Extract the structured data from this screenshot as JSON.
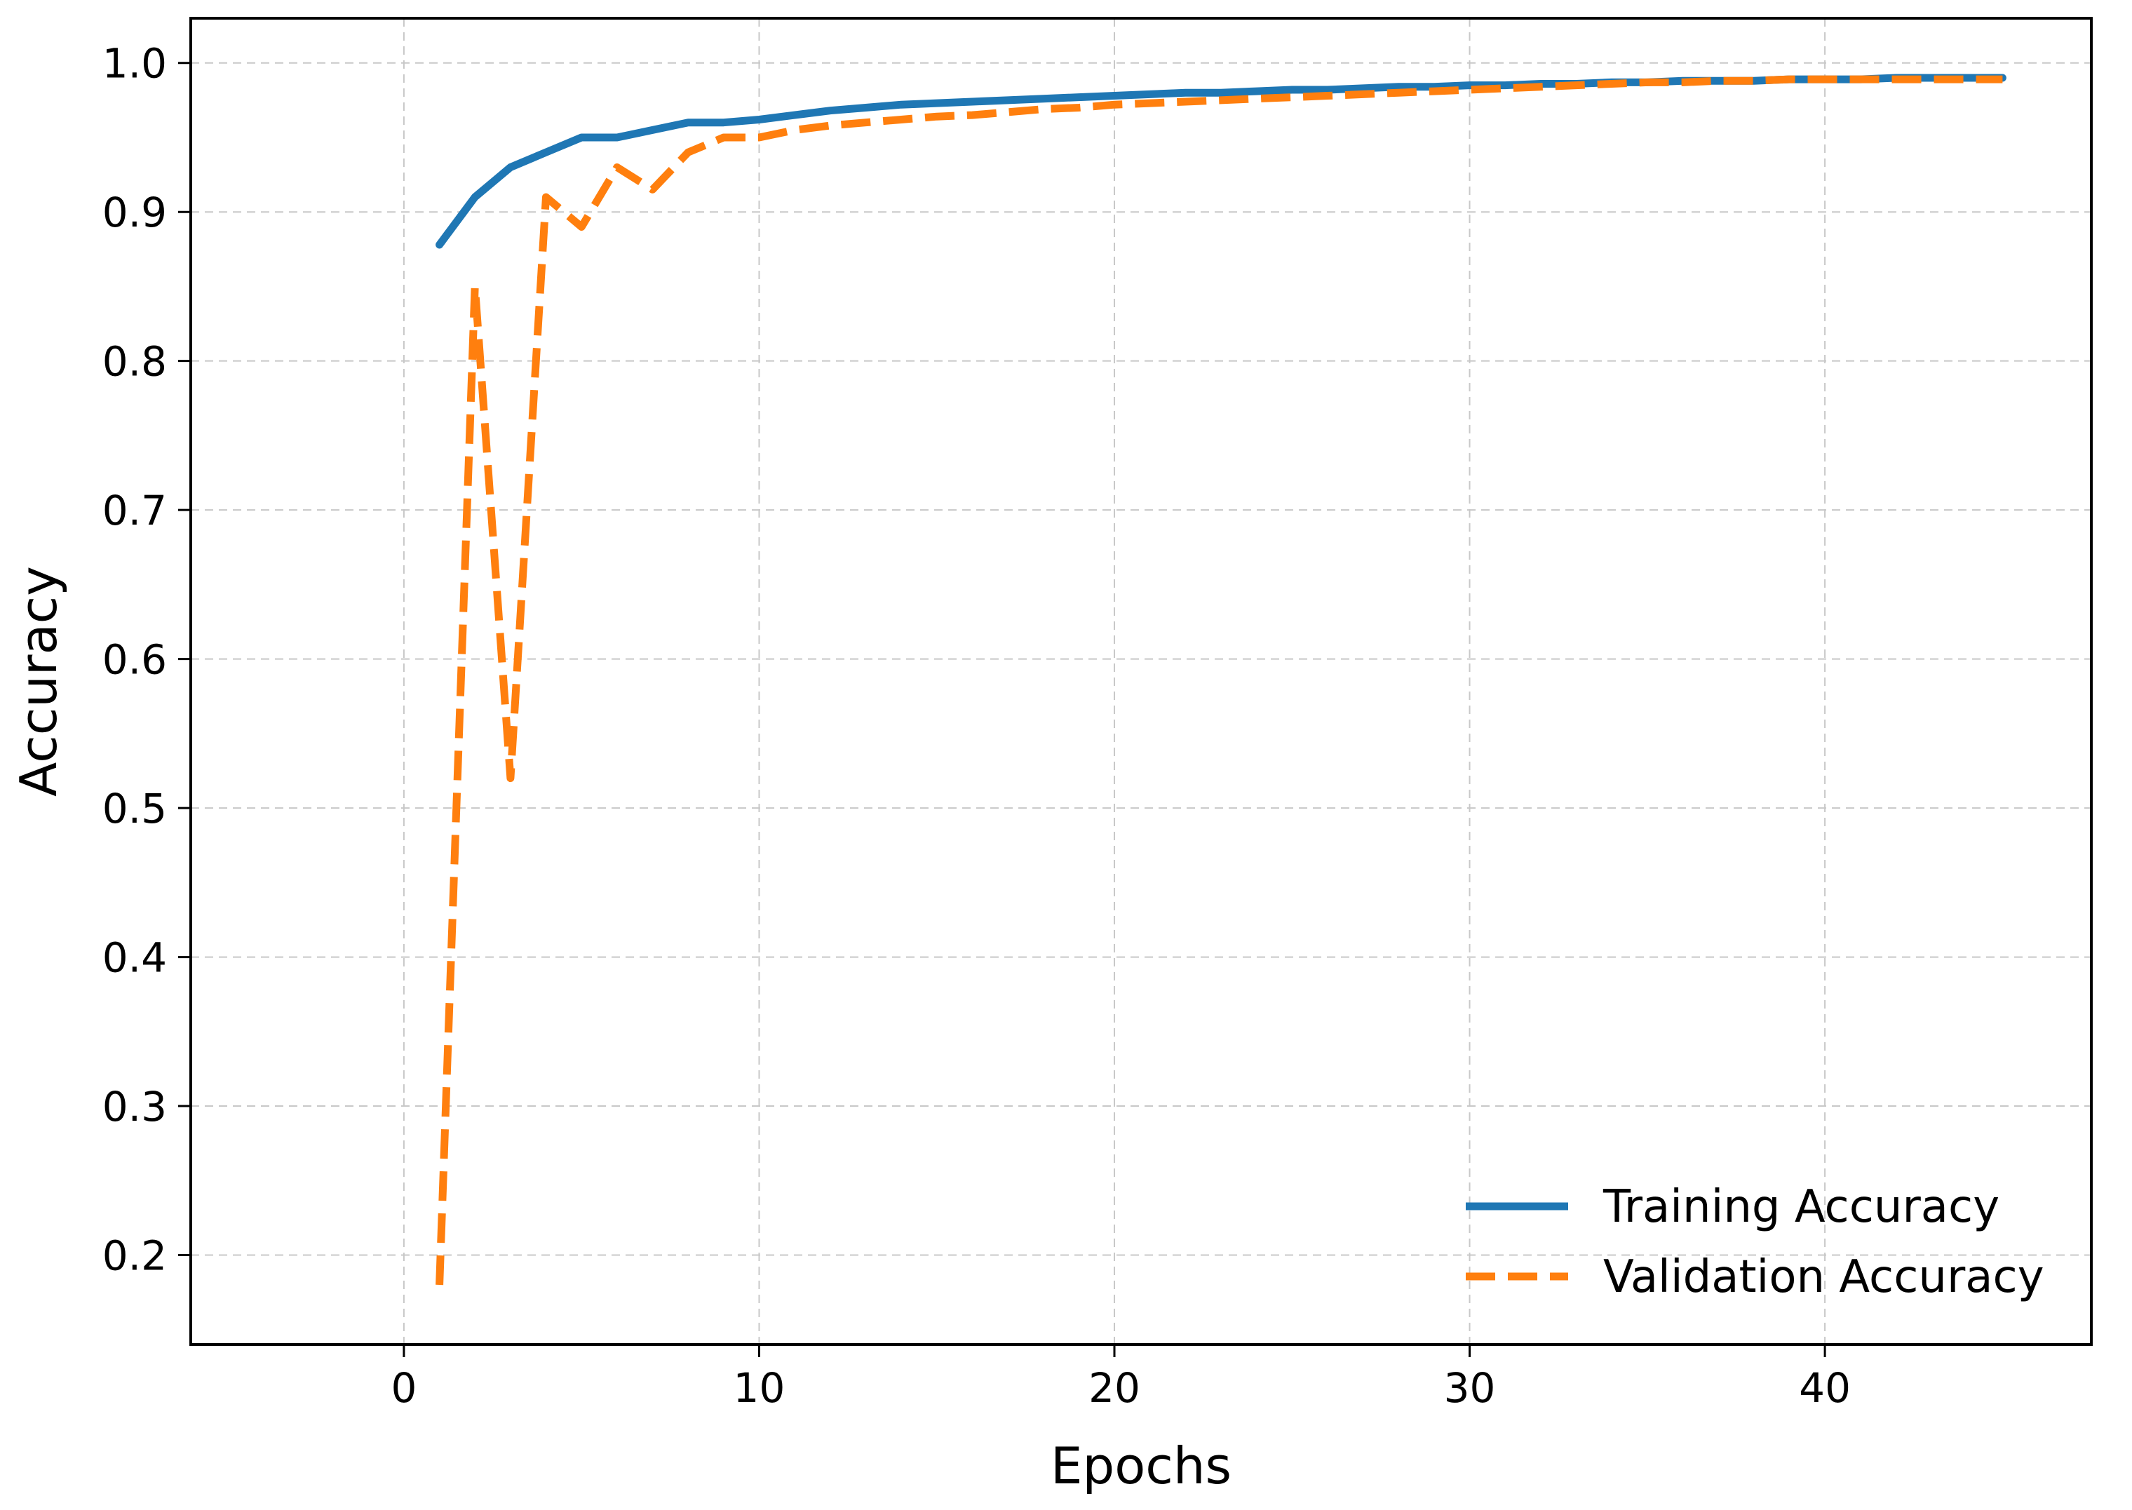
{
  "chart_data": {
    "type": "line",
    "xlabel": "Epochs",
    "ylabel": "Accuracy",
    "xlim": [
      -6,
      47.5
    ],
    "ylim": [
      0.14,
      1.03
    ],
    "xticks": [
      0,
      10,
      20,
      30,
      40
    ],
    "yticks": [
      0.2,
      0.3,
      0.4,
      0.5,
      0.6,
      0.7,
      0.8,
      0.9,
      1.0
    ],
    "grid": true,
    "legend_position": "lower-right",
    "series": [
      {
        "name": "Training Accuracy",
        "color": "#1f77b4",
        "style": "solid",
        "x": [
          1,
          2,
          3,
          4,
          5,
          6,
          7,
          8,
          9,
          10,
          11,
          12,
          13,
          14,
          15,
          16,
          17,
          18,
          19,
          20,
          21,
          22,
          23,
          24,
          25,
          26,
          27,
          28,
          29,
          30,
          31,
          32,
          33,
          34,
          35,
          36,
          37,
          38,
          39,
          40,
          41,
          42,
          43,
          44,
          45
        ],
        "y": [
          0.878,
          0.91,
          0.93,
          0.94,
          0.95,
          0.95,
          0.955,
          0.96,
          0.96,
          0.962,
          0.965,
          0.968,
          0.97,
          0.972,
          0.973,
          0.974,
          0.975,
          0.976,
          0.977,
          0.978,
          0.979,
          0.98,
          0.98,
          0.981,
          0.982,
          0.982,
          0.983,
          0.984,
          0.984,
          0.985,
          0.985,
          0.986,
          0.986,
          0.987,
          0.987,
          0.988,
          0.988,
          0.988,
          0.989,
          0.989,
          0.989,
          0.99,
          0.99,
          0.99,
          0.99
        ]
      },
      {
        "name": "Validation Accuracy",
        "color": "#ff7f0e",
        "style": "dashed",
        "x": [
          1,
          2,
          3,
          4,
          5,
          6,
          7,
          8,
          9,
          10,
          11,
          12,
          13,
          14,
          15,
          16,
          17,
          18,
          19,
          20,
          21,
          22,
          23,
          24,
          25,
          26,
          27,
          28,
          29,
          30,
          31,
          32,
          33,
          34,
          35,
          36,
          37,
          38,
          39,
          40,
          41,
          42,
          43,
          44,
          45
        ],
        "y": [
          0.18,
          0.85,
          0.52,
          0.91,
          0.89,
          0.93,
          0.915,
          0.94,
          0.95,
          0.95,
          0.955,
          0.958,
          0.96,
          0.962,
          0.964,
          0.965,
          0.967,
          0.969,
          0.97,
          0.972,
          0.973,
          0.974,
          0.975,
          0.976,
          0.977,
          0.978,
          0.979,
          0.98,
          0.981,
          0.982,
          0.983,
          0.984,
          0.985,
          0.986,
          0.987,
          0.987,
          0.988,
          0.988,
          0.989,
          0.989,
          0.989,
          0.989,
          0.989,
          0.989,
          0.989
        ]
      }
    ]
  }
}
